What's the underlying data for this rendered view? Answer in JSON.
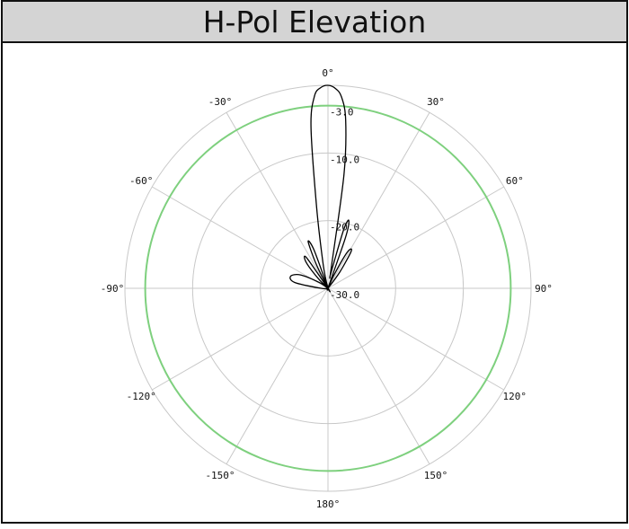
{
  "title": "H-Pol Elevation",
  "colors": {
    "grid": "#c8c8c8",
    "pattern": "#000000",
    "reference_circle": "#7ed07e",
    "title_bg": "#d4d4d4"
  },
  "chart_data": {
    "type": "polar",
    "title": "H-Pol Elevation",
    "angle_unit": "deg",
    "angle_zero": "top",
    "angle_direction": "clockwise",
    "angle_ticks": [
      {
        "angle": 0,
        "label": "0°"
      },
      {
        "angle": 30,
        "label": "30°"
      },
      {
        "angle": 60,
        "label": "60°"
      },
      {
        "angle": 90,
        "label": "90°"
      },
      {
        "angle": 120,
        "label": "120°"
      },
      {
        "angle": 150,
        "label": "150°"
      },
      {
        "angle": 180,
        "label": "180°"
      },
      {
        "angle": 210,
        "label": "-150°"
      },
      {
        "angle": 240,
        "label": "-120°"
      },
      {
        "angle": 270,
        "label": "-90°"
      },
      {
        "angle": 300,
        "label": "-60°"
      },
      {
        "angle": 330,
        "label": "-30°"
      }
    ],
    "radial_unit": "dB",
    "radial_range": [
      -30,
      0
    ],
    "radial_ticks": [
      {
        "value": -3,
        "label": "-3.0"
      },
      {
        "value": -10,
        "label": "-10.0"
      },
      {
        "value": -20,
        "label": "-20.0"
      },
      {
        "value": -30,
        "label": "-30.0"
      }
    ],
    "grid": true,
    "series": [
      {
        "role": "pattern",
        "color": "#000000",
        "points": [
          {
            "angle": -30,
            "db": -30
          },
          {
            "angle": -26,
            "db": -26
          },
          {
            "angle": -23,
            "db": -22.5
          },
          {
            "angle": -20,
            "db": -24
          },
          {
            "angle": -16,
            "db": -30
          },
          {
            "angle": -14,
            "db": -29
          },
          {
            "angle": -11,
            "db": -26
          },
          {
            "angle": -8,
            "db": -18
          },
          {
            "angle": -6,
            "db": -6
          },
          {
            "angle": -4,
            "db": -1.5
          },
          {
            "angle": -2,
            "db": -0.3
          },
          {
            "angle": 0,
            "db": 0
          },
          {
            "angle": 2,
            "db": -0.4
          },
          {
            "angle": 4,
            "db": -1.6
          },
          {
            "angle": 6,
            "db": -5
          },
          {
            "angle": 8,
            "db": -13
          },
          {
            "angle": 9,
            "db": -27
          },
          {
            "angle": 10,
            "db": -28
          },
          {
            "angle": 13,
            "db": -26
          },
          {
            "angle": 15,
            "db": -21
          },
          {
            "angle": 17,
            "db": -19.5
          },
          {
            "angle": 19,
            "db": -22
          },
          {
            "angle": 21,
            "db": -30
          },
          {
            "angle": 24,
            "db": -28
          },
          {
            "angle": 28,
            "db": -24
          },
          {
            "angle": 32,
            "db": -23.5
          },
          {
            "angle": 36,
            "db": -27
          },
          {
            "angle": 40,
            "db": -30
          },
          {
            "angle": 60,
            "db": -30
          },
          {
            "angle": 180,
            "db": -30
          },
          {
            "angle": 260,
            "db": -30
          },
          {
            "angle": 270,
            "db": -29
          },
          {
            "angle": 280,
            "db": -25
          },
          {
            "angle": 288,
            "db": -24.2
          },
          {
            "angle": 296,
            "db": -25.5
          },
          {
            "angle": 304,
            "db": -28.5
          },
          {
            "angle": 310,
            "db": -30
          },
          {
            "angle": 315,
            "db": -28
          },
          {
            "angle": 320,
            "db": -25
          },
          {
            "angle": 325,
            "db": -24.5
          },
          {
            "angle": 330,
            "db": -30
          }
        ]
      },
      {
        "role": "reference",
        "color": "#7ed07e",
        "constant_db": -3
      }
    ]
  }
}
